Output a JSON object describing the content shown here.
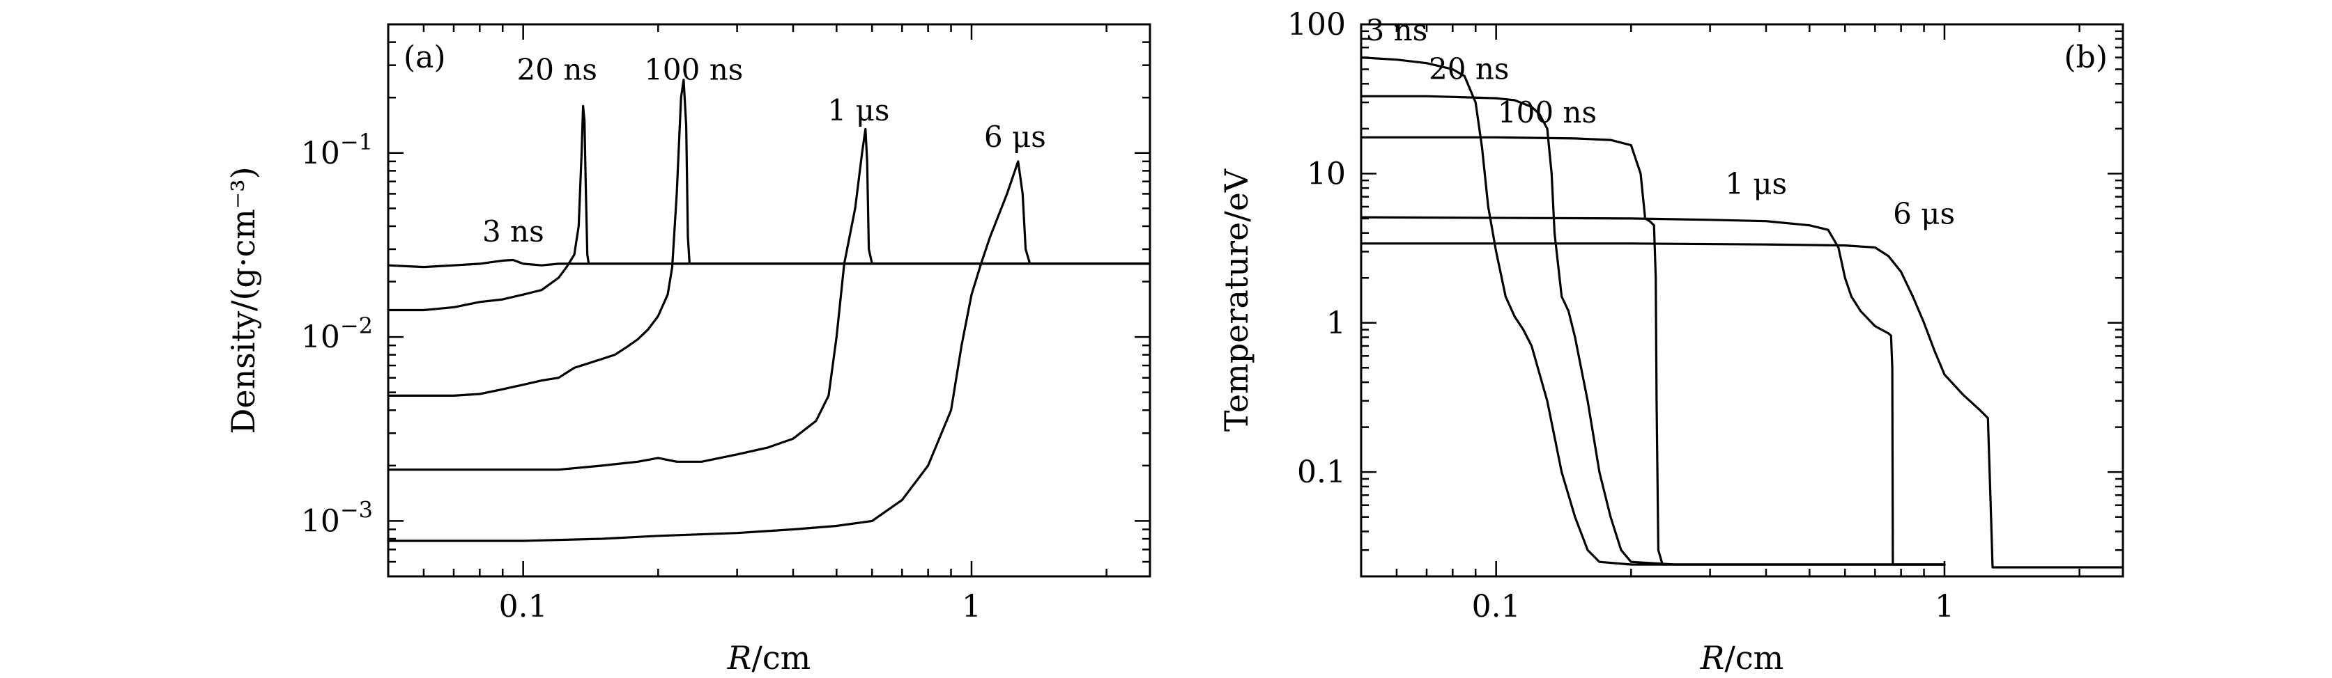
{
  "chart_data": [
    {
      "type": "line",
      "panel_label": "(a)",
      "xlabel_italic": "R",
      "xlabel_rest": "/cm",
      "ylabel": "Density/(g·cm⁻³)",
      "xscale": "log",
      "yscale": "log",
      "xlim": [
        0.05,
        2.5
      ],
      "ylim": [
        0.0005,
        0.5
      ],
      "xticks": [
        {
          "value": 0.1,
          "label": "0.1"
        },
        {
          "value": 1,
          "label": "1"
        }
      ],
      "yticks": [
        {
          "value": 0.001,
          "base": "10",
          "exp": "−3"
        },
        {
          "value": 0.01,
          "base": "10",
          "exp": "−2"
        },
        {
          "value": 0.1,
          "base": "10",
          "exp": "−1"
        }
      ],
      "series": [
        {
          "name": "3 ns",
          "label_at": [
            0.095,
            0.033
          ],
          "points": [
            [
              0.05,
              0.0245
            ],
            [
              0.06,
              0.024
            ],
            [
              0.07,
              0.0245
            ],
            [
              0.08,
              0.025
            ],
            [
              0.09,
              0.026
            ],
            [
              0.095,
              0.0262
            ],
            [
              0.1,
              0.025
            ],
            [
              0.11,
              0.0245
            ],
            [
              0.12,
              0.025
            ],
            [
              0.2,
              0.025
            ],
            [
              1.0,
              0.025
            ],
            [
              2.5,
              0.025
            ]
          ]
        },
        {
          "name": "20 ns",
          "label_at": [
            0.119,
            0.25
          ],
          "points": [
            [
              0.05,
              0.014
            ],
            [
              0.06,
              0.014
            ],
            [
              0.07,
              0.0145
            ],
            [
              0.08,
              0.0155
            ],
            [
              0.09,
              0.016
            ],
            [
              0.1,
              0.017
            ],
            [
              0.11,
              0.018
            ],
            [
              0.12,
              0.021
            ],
            [
              0.125,
              0.024
            ],
            [
              0.13,
              0.028
            ],
            [
              0.133,
              0.04
            ],
            [
              0.135,
              0.1
            ],
            [
              0.136,
              0.18
            ],
            [
              0.137,
              0.15
            ],
            [
              0.138,
              0.06
            ],
            [
              0.139,
              0.028
            ],
            [
              0.14,
              0.025
            ],
            [
              2.5,
              0.025
            ]
          ]
        },
        {
          "name": "100 ns",
          "label_at": [
            0.24,
            0.25
          ],
          "points": [
            [
              0.05,
              0.0048
            ],
            [
              0.06,
              0.0048
            ],
            [
              0.07,
              0.0048
            ],
            [
              0.08,
              0.0049
            ],
            [
              0.09,
              0.0052
            ],
            [
              0.1,
              0.0055
            ],
            [
              0.11,
              0.0058
            ],
            [
              0.12,
              0.006
            ],
            [
              0.13,
              0.0068
            ],
            [
              0.14,
              0.0072
            ],
            [
              0.15,
              0.0076
            ],
            [
              0.16,
              0.008
            ],
            [
              0.17,
              0.0088
            ],
            [
              0.18,
              0.0097
            ],
            [
              0.19,
              0.011
            ],
            [
              0.2,
              0.013
            ],
            [
              0.21,
              0.017
            ],
            [
              0.215,
              0.024
            ],
            [
              0.22,
              0.06
            ],
            [
              0.225,
              0.2
            ],
            [
              0.228,
              0.25
            ],
            [
              0.231,
              0.14
            ],
            [
              0.233,
              0.035
            ],
            [
              0.235,
              0.025
            ],
            [
              2.5,
              0.025
            ]
          ]
        },
        {
          "name": "1 μs",
          "label_at": [
            0.56,
            0.15
          ],
          "points": [
            [
              0.05,
              0.0019
            ],
            [
              0.08,
              0.0019
            ],
            [
              0.1,
              0.0019
            ],
            [
              0.12,
              0.0019
            ],
            [
              0.15,
              0.002
            ],
            [
              0.18,
              0.0021
            ],
            [
              0.2,
              0.0022
            ],
            [
              0.22,
              0.0021
            ],
            [
              0.25,
              0.0021
            ],
            [
              0.3,
              0.0023
            ],
            [
              0.35,
              0.0025
            ],
            [
              0.4,
              0.0028
            ],
            [
              0.45,
              0.0035
            ],
            [
              0.48,
              0.0048
            ],
            [
              0.5,
              0.01
            ],
            [
              0.52,
              0.025
            ],
            [
              0.55,
              0.05
            ],
            [
              0.57,
              0.1
            ],
            [
              0.58,
              0.135
            ],
            [
              0.585,
              0.09
            ],
            [
              0.59,
              0.03
            ],
            [
              0.6,
              0.025
            ],
            [
              2.5,
              0.025
            ]
          ]
        },
        {
          "name": "6 μs",
          "label_at": [
            1.25,
            0.108
          ],
          "points": [
            [
              0.05,
              0.00078
            ],
            [
              0.1,
              0.00078
            ],
            [
              0.15,
              0.0008
            ],
            [
              0.2,
              0.00083
            ],
            [
              0.3,
              0.00086
            ],
            [
              0.4,
              0.0009
            ],
            [
              0.5,
              0.00094
            ],
            [
              0.6,
              0.001
            ],
            [
              0.7,
              0.0013
            ],
            [
              0.8,
              0.002
            ],
            [
              0.9,
              0.004
            ],
            [
              0.95,
              0.009
            ],
            [
              1.0,
              0.017
            ],
            [
              1.05,
              0.025
            ],
            [
              1.1,
              0.035
            ],
            [
              1.2,
              0.06
            ],
            [
              1.27,
              0.09
            ],
            [
              1.3,
              0.06
            ],
            [
              1.32,
              0.03
            ],
            [
              1.35,
              0.025
            ],
            [
              2.5,
              0.025
            ]
          ]
        }
      ]
    },
    {
      "type": "line",
      "panel_label": "(b)",
      "xlabel_italic": "R",
      "xlabel_rest": "/cm",
      "ylabel": "Temperature/eV",
      "xscale": "log",
      "yscale": "log",
      "xlim": [
        0.05,
        2.5
      ],
      "ylim": [
        0.02,
        100
      ],
      "xticks": [
        {
          "value": 0.1,
          "label": "0.1"
        },
        {
          "value": 1,
          "label": "1"
        }
      ],
      "yticks": [
        {
          "value": 0.1,
          "label": "0.1"
        },
        {
          "value": 1,
          "label": "1"
        },
        {
          "value": 10,
          "label": "10"
        },
        {
          "value": 100,
          "label": "100"
        }
      ],
      "series": [
        {
          "name": "3 ns",
          "label_at": [
            0.06,
            78
          ],
          "points": [
            [
              0.05,
              60
            ],
            [
              0.06,
              58
            ],
            [
              0.07,
              55
            ],
            [
              0.08,
              50
            ],
            [
              0.085,
              45
            ],
            [
              0.09,
              30
            ],
            [
              0.093,
              15
            ],
            [
              0.096,
              6
            ],
            [
              0.1,
              3
            ],
            [
              0.105,
              1.5
            ],
            [
              0.11,
              1.1
            ],
            [
              0.115,
              0.9
            ],
            [
              0.12,
              0.7
            ],
            [
              0.13,
              0.3
            ],
            [
              0.14,
              0.1
            ],
            [
              0.15,
              0.05
            ],
            [
              0.16,
              0.03
            ],
            [
              0.17,
              0.025
            ],
            [
              0.2,
              0.024
            ],
            [
              1.0,
              0.024
            ]
          ]
        },
        {
          "name": "20 ns",
          "label_at": [
            0.087,
            43
          ],
          "points": [
            [
              0.05,
              33
            ],
            [
              0.07,
              33
            ],
            [
              0.1,
              32
            ],
            [
              0.11,
              31
            ],
            [
              0.12,
              28
            ],
            [
              0.125,
              25
            ],
            [
              0.13,
              20
            ],
            [
              0.133,
              10
            ],
            [
              0.135,
              4
            ],
            [
              0.14,
              1.5
            ],
            [
              0.145,
              1.2
            ],
            [
              0.15,
              0.8
            ],
            [
              0.16,
              0.3
            ],
            [
              0.17,
              0.1
            ],
            [
              0.18,
              0.05
            ],
            [
              0.19,
              0.03
            ],
            [
              0.2,
              0.025
            ],
            [
              0.25,
              0.024
            ],
            [
              1.0,
              0.024
            ]
          ]
        },
        {
          "name": "100 ns",
          "label_at": [
            0.13,
            22
          ],
          "points": [
            [
              0.05,
              17.5
            ],
            [
              0.1,
              17.5
            ],
            [
              0.15,
              17.2
            ],
            [
              0.18,
              16.8
            ],
            [
              0.2,
              15.5
            ],
            [
              0.21,
              10
            ],
            [
              0.215,
              5
            ],
            [
              0.22,
              4.8
            ],
            [
              0.225,
              4.5
            ],
            [
              0.227,
              2
            ],
            [
              0.228,
              0.3
            ],
            [
              0.23,
              0.03
            ],
            [
              0.235,
              0.024
            ],
            [
              0.5,
              0.024
            ],
            [
              1.0,
              0.024
            ]
          ]
        },
        {
          "name": "1 μs",
          "label_at": [
            0.38,
            7.3
          ],
          "points": [
            [
              0.05,
              5.1
            ],
            [
              0.2,
              5.0
            ],
            [
              0.3,
              4.9
            ],
            [
              0.4,
              4.8
            ],
            [
              0.5,
              4.5
            ],
            [
              0.55,
              4.2
            ],
            [
              0.58,
              3.2
            ],
            [
              0.6,
              2.0
            ],
            [
              0.62,
              1.5
            ],
            [
              0.65,
              1.2
            ],
            [
              0.7,
              0.95
            ],
            [
              0.75,
              0.85
            ],
            [
              0.76,
              0.82
            ],
            [
              0.765,
              0.5
            ],
            [
              0.767,
              0.024
            ],
            [
              1.0,
              0.024
            ]
          ]
        },
        {
          "name": "6 μs",
          "label_at": [
            0.9,
            4.6
          ],
          "points": [
            [
              0.05,
              3.4
            ],
            [
              0.2,
              3.4
            ],
            [
              0.4,
              3.35
            ],
            [
              0.6,
              3.3
            ],
            [
              0.7,
              3.2
            ],
            [
              0.75,
              2.8
            ],
            [
              0.8,
              2.2
            ],
            [
              0.85,
              1.5
            ],
            [
              0.9,
              1.0
            ],
            [
              0.95,
              0.65
            ],
            [
              1.0,
              0.45
            ],
            [
              1.1,
              0.33
            ],
            [
              1.2,
              0.26
            ],
            [
              1.25,
              0.23
            ],
            [
              1.27,
              0.05
            ],
            [
              1.28,
              0.023
            ],
            [
              2.5,
              0.023
            ]
          ]
        }
      ]
    }
  ]
}
